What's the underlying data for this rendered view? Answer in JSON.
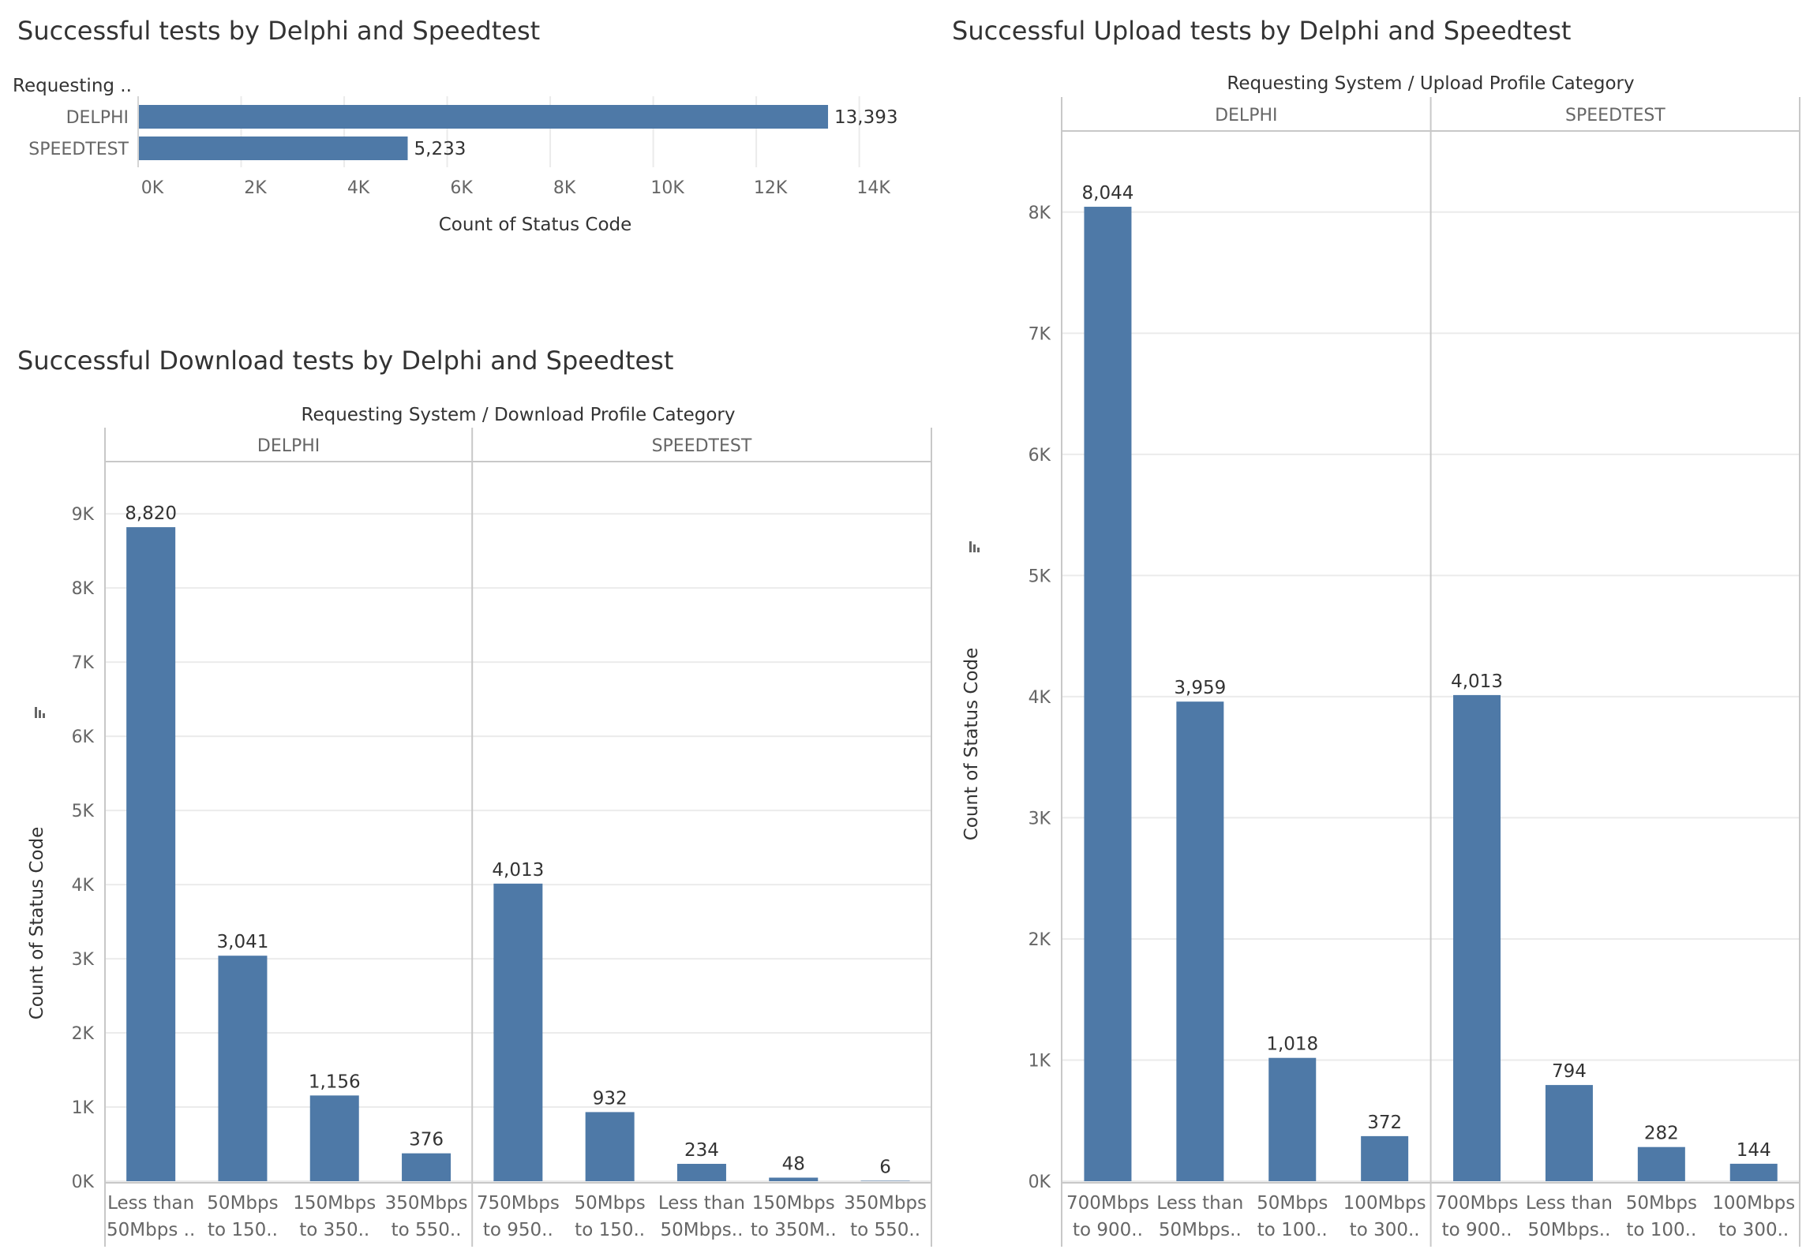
{
  "colors": {
    "bar": "#4e79a7",
    "text": "#333333",
    "axis": "#666666",
    "grid": "#ebebeb",
    "divider": "#c8c8c8",
    "rule": "#d4d4d4"
  },
  "chart_data": [
    {
      "type": "bar",
      "orientation": "horizontal",
      "title": "Successful tests by Delphi and Speedtest",
      "ylabel": "Requesting ..",
      "xlabel": "Count of Status Code",
      "categories": [
        "DELPHI",
        "SPEEDTEST"
      ],
      "values": [
        13393,
        5233
      ],
      "value_labels": [
        "13,393",
        "5,233"
      ],
      "ticks": [
        0,
        2000,
        4000,
        6000,
        8000,
        10000,
        12000,
        14000
      ],
      "tick_labels": [
        "0K",
        "2K",
        "4K",
        "6K",
        "8K",
        "10K",
        "12K",
        "14K"
      ],
      "xlim": [
        0,
        15400
      ],
      "grid": true
    },
    {
      "type": "bar",
      "title": "Successful Download tests by Delphi and Speedtest",
      "header": "Requesting System  /  Download Profile Category",
      "ylabel": "Count of Status Code",
      "ylim": [
        0,
        9300
      ],
      "ticks": [
        0,
        1000,
        2000,
        3000,
        4000,
        5000,
        6000,
        7000,
        8000,
        9000
      ],
      "tick_labels": [
        "0K",
        "1K",
        "2K",
        "3K",
        "4K",
        "5K",
        "6K",
        "7K",
        "8K",
        "9K"
      ],
      "grid": true,
      "panels": [
        {
          "name": "DELPHI",
          "categories": [
            [
              "Less than",
              "50Mbps .."
            ],
            [
              "50Mbps",
              "to 150.."
            ],
            [
              "150Mbps",
              "to 350.."
            ],
            [
              "350Mbps",
              "to 550.."
            ]
          ],
          "values": [
            8820,
            3041,
            1156,
            376
          ],
          "value_labels": [
            "8,820",
            "3,041",
            "1,156",
            "376"
          ]
        },
        {
          "name": "SPEEDTEST",
          "categories": [
            [
              "750Mbps",
              "to 950.."
            ],
            [
              "50Mbps",
              "to 150.."
            ],
            [
              "Less than",
              "50Mbps.."
            ],
            [
              "150Mbps",
              "to 350M.."
            ],
            [
              "350Mbps",
              "to 550.."
            ]
          ],
          "values": [
            4013,
            932,
            234,
            48,
            6
          ],
          "value_labels": [
            "4,013",
            "932",
            "234",
            "48",
            "6"
          ]
        }
      ]
    },
    {
      "type": "bar",
      "title": "Successful Upload tests by Delphi and Speedtest",
      "header": "Requesting System  /  Upload Profile Category",
      "ylabel": "Count of Status Code",
      "ylim": [
        0,
        8650
      ],
      "ticks": [
        0,
        1000,
        2000,
        3000,
        4000,
        5000,
        6000,
        7000,
        8000
      ],
      "tick_labels": [
        "0K",
        "1K",
        "2K",
        "3K",
        "4K",
        "5K",
        "6K",
        "7K",
        "8K"
      ],
      "grid": true,
      "panels": [
        {
          "name": "DELPHI",
          "categories": [
            [
              "700Mbps",
              "to 900.."
            ],
            [
              "Less than",
              "50Mbps.."
            ],
            [
              "50Mbps",
              "to 100.."
            ],
            [
              "100Mbps",
              "to 300.."
            ]
          ],
          "values": [
            8044,
            3959,
            1018,
            372
          ],
          "value_labels": [
            "8,044",
            "3,959",
            "1,018",
            "372"
          ]
        },
        {
          "name": "SPEEDTEST",
          "categories": [
            [
              "700Mbps",
              "to 900.."
            ],
            [
              "Less than",
              "50Mbps.."
            ],
            [
              "50Mbps",
              "to 100.."
            ],
            [
              "100Mbps",
              "to 300.."
            ]
          ],
          "values": [
            4013,
            794,
            282,
            144
          ],
          "value_labels": [
            "4,013",
            "794",
            "282",
            "144"
          ]
        }
      ]
    }
  ]
}
